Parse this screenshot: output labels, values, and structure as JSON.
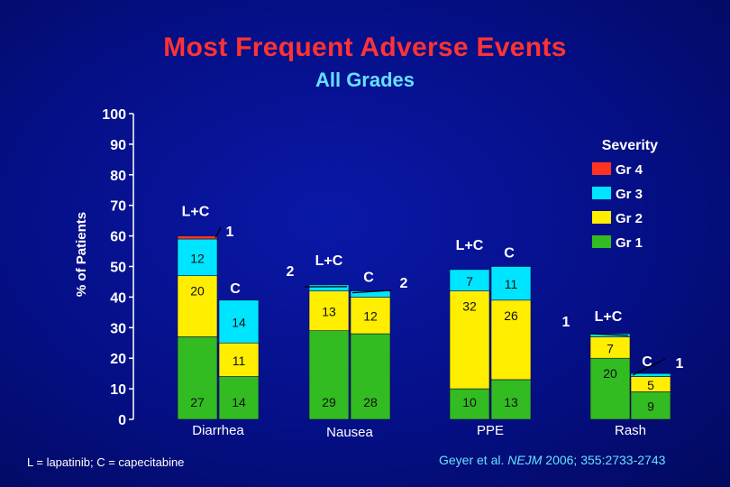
{
  "title": "Most Frequent Adverse Events",
  "subtitle": "All Grades",
  "footer_note": "L = lapatinib; C = capecitabine",
  "citation": {
    "prefix": "Geyer et al. ",
    "journal": "NEJM",
    "suffix": " 2006; 355:2733-2743"
  },
  "colors": {
    "grade4": "#ff3322",
    "grade3": "#00e5ff",
    "grade2": "#ffee00",
    "grade1": "#33bb22",
    "background": "#050f86",
    "axis_text": "#ffffff",
    "title": "#ff3333",
    "subtitle": "#66e0ff"
  },
  "chart_data": {
    "type": "bar",
    "stacked": true,
    "ylabel": "% of Patients",
    "ylim": [
      0,
      100
    ],
    "yticks": [
      0,
      10,
      20,
      30,
      40,
      50,
      60,
      70,
      80,
      90,
      100
    ],
    "legend": {
      "title": "Severity",
      "position": "top-right",
      "entries": [
        {
          "label": "Gr 4",
          "color": "#ff3322"
        },
        {
          "label": "Gr 3",
          "color": "#00e5ff"
        },
        {
          "label": "Gr 2",
          "color": "#ffee00"
        },
        {
          "label": "Gr 1",
          "color": "#33bb22"
        }
      ]
    },
    "groups": [
      {
        "category": "Diarrhea",
        "bars": [
          {
            "arm": "L+C",
            "grade1": 27,
            "grade2": 20,
            "grade3": 12,
            "grade4": 1
          },
          {
            "arm": "C",
            "grade1": 14,
            "grade2": 11,
            "grade3": 14,
            "grade4": 0
          }
        ]
      },
      {
        "category": "Nausea",
        "bars": [
          {
            "arm": "L+C",
            "grade1": 29,
            "grade2": 13,
            "grade3": 2,
            "grade4": 0
          },
          {
            "arm": "C",
            "grade1": 28,
            "grade2": 12,
            "grade3": 2,
            "grade4": 0
          }
        ]
      },
      {
        "category": "PPE",
        "bars": [
          {
            "arm": "L+C",
            "grade1": 10,
            "grade2": 32,
            "grade3": 7,
            "grade4": 0
          },
          {
            "arm": "C",
            "grade1": 13,
            "grade2": 26,
            "grade3": 11,
            "grade4": 0
          }
        ]
      },
      {
        "category": "Rash",
        "bars": [
          {
            "arm": "L+C",
            "grade1": 20,
            "grade2": 7,
            "grade3": 1,
            "grade4": 0
          },
          {
            "arm": "C",
            "grade1": 9,
            "grade2": 5,
            "grade3": 1,
            "grade4": 0
          }
        ]
      }
    ]
  }
}
